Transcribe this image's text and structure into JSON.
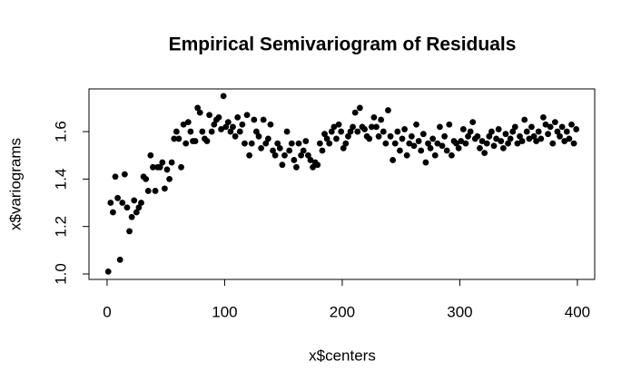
{
  "chart_data": {
    "type": "scatter",
    "title": "Empirical Semivariogram of Residuals",
    "x_label": "x$centers",
    "y_label": "x$variograms",
    "color": "#000000",
    "grid": false,
    "xlim": [
      -15.4,
      414.7
    ],
    "ylim": [
      0.977,
      1.78
    ],
    "xticks": [
      0,
      100,
      200,
      300,
      400
    ],
    "yticks": [
      {
        "value": 1,
        "label": "1.0"
      },
      1.2,
      1.4,
      1.6
    ],
    "x": [
      1,
      3,
      5,
      7,
      9,
      11,
      13,
      15,
      17,
      19,
      21,
      23,
      25,
      27,
      29,
      31,
      33,
      35,
      37,
      39,
      41,
      43,
      45,
      47,
      49,
      51,
      53,
      55,
      57,
      59,
      61,
      63,
      65,
      67,
      69,
      71,
      73,
      75,
      77,
      79,
      81,
      83,
      85,
      87,
      89,
      91,
      93,
      95,
      97,
      99,
      101,
      103,
      105,
      107,
      109,
      111,
      113,
      115,
      117,
      119,
      121,
      123,
      125,
      127,
      129,
      131,
      133,
      135,
      137,
      139,
      141,
      143,
      145,
      147,
      149,
      151,
      153,
      155,
      157,
      159,
      161,
      163,
      165,
      167,
      169,
      171,
      173,
      175,
      177,
      179,
      181,
      183,
      185,
      187,
      189,
      191,
      193,
      195,
      197,
      199,
      201,
      203,
      205,
      207,
      209,
      211,
      213,
      215,
      217,
      219,
      221,
      223,
      225,
      227,
      229,
      231,
      233,
      235,
      237,
      239,
      241,
      243,
      245,
      247,
      249,
      251,
      253,
      255,
      257,
      259,
      261,
      263,
      265,
      267,
      269,
      271,
      273,
      275,
      277,
      279,
      281,
      283,
      285,
      287,
      289,
      291,
      293,
      295,
      297,
      299,
      301,
      303,
      305,
      307,
      309,
      311,
      313,
      315,
      317,
      319,
      321,
      323,
      325,
      327,
      329,
      331,
      333,
      335,
      337,
      339,
      341,
      343,
      345,
      347,
      349,
      351,
      353,
      355,
      357,
      359,
      361,
      363,
      365,
      367,
      369,
      371,
      373,
      375,
      377,
      379,
      381,
      383,
      385,
      387,
      389,
      391,
      393,
      395,
      397,
      399
    ],
    "values": [
      1.01,
      1.3,
      1.26,
      1.41,
      1.32,
      1.06,
      1.3,
      1.42,
      1.28,
      1.18,
      1.24,
      1.31,
      1.26,
      1.28,
      1.3,
      1.41,
      1.4,
      1.35,
      1.5,
      1.45,
      1.35,
      1.45,
      1.45,
      1.47,
      1.36,
      1.44,
      1.4,
      1.47,
      1.57,
      1.6,
      1.57,
      1.45,
      1.63,
      1.55,
      1.64,
      1.6,
      1.56,
      1.56,
      1.7,
      1.68,
      1.6,
      1.57,
      1.56,
      1.67,
      1.6,
      1.63,
      1.65,
      1.66,
      1.61,
      1.75,
      1.62,
      1.64,
      1.6,
      1.62,
      1.58,
      1.66,
      1.6,
      1.63,
      1.55,
      1.67,
      1.5,
      1.55,
      1.65,
      1.6,
      1.58,
      1.53,
      1.65,
      1.55,
      1.57,
      1.63,
      1.52,
      1.5,
      1.55,
      1.53,
      1.46,
      1.5,
      1.6,
      1.52,
      1.55,
      1.48,
      1.45,
      1.55,
      1.5,
      1.52,
      1.56,
      1.5,
      1.48,
      1.45,
      1.47,
      1.46,
      1.55,
      1.52,
      1.59,
      1.57,
      1.55,
      1.6,
      1.62,
      1.57,
      1.63,
      1.6,
      1.53,
      1.55,
      1.58,
      1.6,
      1.62,
      1.68,
      1.6,
      1.7,
      1.62,
      1.61,
      1.58,
      1.57,
      1.62,
      1.66,
      1.62,
      1.58,
      1.65,
      1.6,
      1.55,
      1.69,
      1.58,
      1.48,
      1.55,
      1.6,
      1.52,
      1.57,
      1.61,
      1.5,
      1.55,
      1.58,
      1.54,
      1.63,
      1.56,
      1.52,
      1.59,
      1.47,
      1.55,
      1.53,
      1.57,
      1.5,
      1.55,
      1.62,
      1.54,
      1.58,
      1.52,
      1.63,
      1.5,
      1.56,
      1.55,
      1.53,
      1.56,
      1.61,
      1.55,
      1.58,
      1.6,
      1.64,
      1.57,
      1.58,
      1.53,
      1.56,
      1.51,
      1.55,
      1.58,
      1.6,
      1.54,
      1.57,
      1.61,
      1.56,
      1.53,
      1.59,
      1.55,
      1.57,
      1.6,
      1.62,
      1.55,
      1.58,
      1.56,
      1.65,
      1.6,
      1.57,
      1.62,
      1.58,
      1.56,
      1.6,
      1.57,
      1.66,
      1.63,
      1.59,
      1.62,
      1.55,
      1.64,
      1.6,
      1.58,
      1.62,
      1.56,
      1.6,
      1.57,
      1.63,
      1.55,
      1.61
    ]
  }
}
